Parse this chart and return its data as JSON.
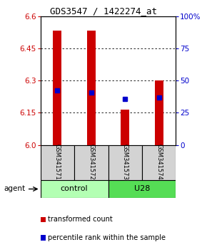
{
  "title": "GDS3547 / 1422274_at",
  "samples": [
    "GSM341571",
    "GSM341572",
    "GSM341573",
    "GSM341574"
  ],
  "bar_bottoms": [
    6.0,
    6.0,
    6.0,
    6.0
  ],
  "bar_tops": [
    6.535,
    6.535,
    6.165,
    6.3
  ],
  "percentile_values": [
    6.255,
    6.245,
    6.215,
    6.22
  ],
  "bar_color": "#cc0000",
  "percentile_color": "#0000cc",
  "ylim": [
    6.0,
    6.6
  ],
  "yticks_left": [
    6.0,
    6.15,
    6.3,
    6.45,
    6.6
  ],
  "yticks_right": [
    0,
    25,
    50,
    75,
    100
  ],
  "ylabel_left_color": "#cc0000",
  "ylabel_right_color": "#0000cc",
  "bar_width": 0.25,
  "sample_box_color": "#d3d3d3",
  "group_colors": [
    "#b3ffb3",
    "#55dd55"
  ],
  "group_labels": [
    "control",
    "U28"
  ],
  "legend_red": "transformed count",
  "legend_blue": "percentile rank within the sample"
}
